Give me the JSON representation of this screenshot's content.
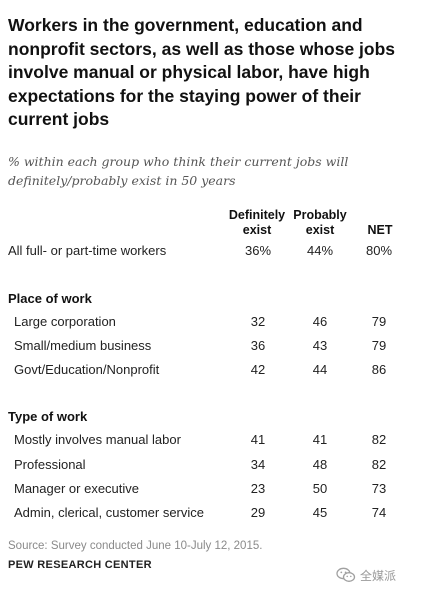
{
  "title": "Workers in the government, education and nonprofit sectors, as well as those whose jobs involve manual or physical labor, have high expectations for the staying power of their current jobs",
  "subtitle": "% within each group who think their current jobs will definitely/probably exist in 50 years",
  "columns": [
    "Definitely exist",
    "Probably exist",
    "NET"
  ],
  "overall": {
    "label": "All full- or part-time workers",
    "values": [
      "36%",
      "44%",
      "80%"
    ]
  },
  "sections": [
    {
      "heading": "Place of work",
      "rows": [
        {
          "label": "Large corporation",
          "values": [
            "32",
            "46",
            "79"
          ]
        },
        {
          "label": "Small/medium business",
          "values": [
            "36",
            "43",
            "79"
          ]
        },
        {
          "label": "Govt/Education/Nonprofit",
          "values": [
            "42",
            "44",
            "86"
          ]
        }
      ]
    },
    {
      "heading": "Type of work",
      "rows": [
        {
          "label": "Mostly involves manual labor",
          "values": [
            "41",
            "41",
            "82"
          ]
        },
        {
          "label": "Professional",
          "values": [
            "34",
            "48",
            "82"
          ]
        },
        {
          "label": "Manager or executive",
          "values": [
            "23",
            "50",
            "73"
          ]
        },
        {
          "label": "Admin, clerical, customer service",
          "values": [
            "29",
            "45",
            "74"
          ]
        }
      ]
    }
  ],
  "source": "Source: Survey conducted June 10-July 12, 2015.",
  "organization": "PEW RESEARCH CENTER",
  "watermark": {
    "text": "全媒派",
    "icon": "wechat-logo-icon"
  },
  "chart_data": {
    "type": "table",
    "title": "Workers in the government, education and nonprofit sectors, as well as those whose jobs involve manual or physical labor, have high expectations for the staying power of their current jobs",
    "subtitle": "% within each group who think their current jobs will definitely/probably exist in 50 years",
    "columns": [
      "Definitely exist",
      "Probably exist",
      "NET"
    ],
    "rows": [
      {
        "group": "",
        "label": "All full- or part-time workers",
        "values": [
          36,
          44,
          80
        ]
      },
      {
        "group": "Place of work",
        "label": "Large corporation",
        "values": [
          32,
          46,
          79
        ]
      },
      {
        "group": "Place of work",
        "label": "Small/medium business",
        "values": [
          36,
          43,
          79
        ]
      },
      {
        "group": "Place of work",
        "label": "Govt/Education/Nonprofit",
        "values": [
          42,
          44,
          86
        ]
      },
      {
        "group": "Type of work",
        "label": "Mostly involves manual labor",
        "values": [
          41,
          41,
          82
        ]
      },
      {
        "group": "Type of work",
        "label": "Professional",
        "values": [
          34,
          48,
          82
        ]
      },
      {
        "group": "Type of work",
        "label": "Manager or executive",
        "values": [
          23,
          50,
          73
        ]
      },
      {
        "group": "Type of work",
        "label": "Admin, clerical, customer service",
        "values": [
          29,
          45,
          74
        ]
      }
    ]
  }
}
